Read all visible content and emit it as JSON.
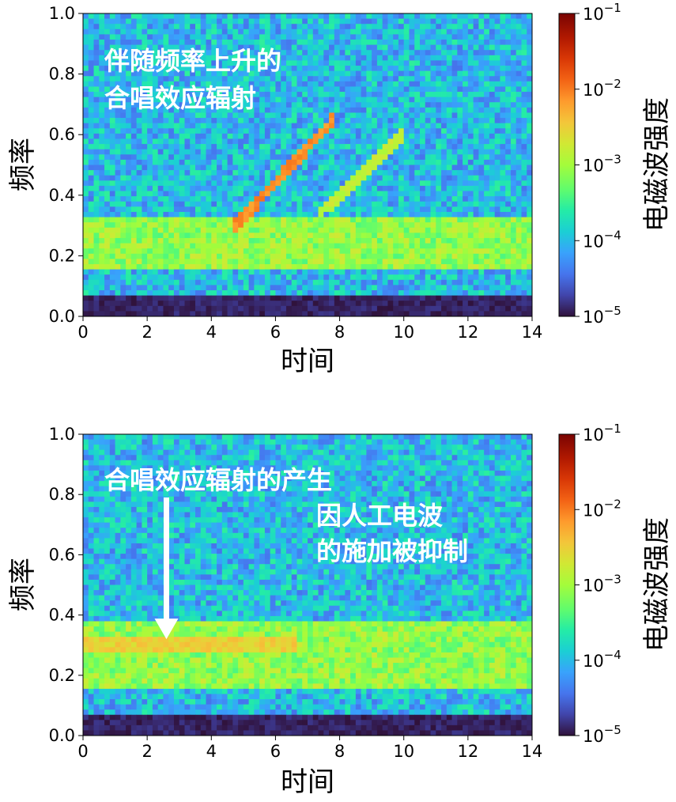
{
  "chart_data": [
    {
      "type": "heatmap",
      "xlabel": "时间",
      "ylabel": "频率",
      "xlim": [
        0,
        14
      ],
      "ylim": [
        0,
        1.0
      ],
      "xticks": [
        "0",
        "2",
        "4",
        "6",
        "8",
        "10",
        "12",
        "14"
      ],
      "yticks": [
        "0.0",
        "0.2",
        "0.4",
        "0.6",
        "0.8",
        "1.0"
      ],
      "colorbar": {
        "label": "电磁波强度",
        "scale": "log",
        "range": [
          1e-05,
          0.1
        ],
        "ticks": [
          {
            "base": "10",
            "exp": "−5"
          },
          {
            "base": "10",
            "exp": "−4"
          },
          {
            "base": "10",
            "exp": "−3"
          },
          {
            "base": "10",
            "exp": "−2"
          },
          {
            "base": "10",
            "exp": "−1"
          }
        ]
      },
      "colormap": "turbo",
      "background_band": {
        "freq_range": [
          0.07,
          0.95
        ],
        "intensity": 0.0001
      },
      "low_band": {
        "freq_range": [
          0.15,
          0.33
        ],
        "intensity": 0.001
      },
      "features": [
        {
          "kind": "rising_tone",
          "t": [
            4.6,
            7.9
          ],
          "f": [
            0.28,
            0.66
          ],
          "intensity": 0.008
        },
        {
          "kind": "rising_tone",
          "t": [
            7.4,
            10.0
          ],
          "f": [
            0.34,
            0.6
          ],
          "intensity": 0.0015
        }
      ],
      "annotations": [
        {
          "lines": [
            "伴随频率上升的",
            "合唱效应辐射"
          ]
        }
      ]
    },
    {
      "type": "heatmap",
      "xlabel": "时间",
      "ylabel": "频率",
      "xlim": [
        0,
        14
      ],
      "ylim": [
        0,
        1.0
      ],
      "xticks": [
        "0",
        "2",
        "4",
        "6",
        "8",
        "10",
        "12",
        "14"
      ],
      "yticks": [
        "0.0",
        "0.2",
        "0.4",
        "0.6",
        "0.8",
        "1.0"
      ],
      "colorbar": {
        "label": "电磁波强度",
        "scale": "log",
        "range": [
          1e-05,
          0.1
        ],
        "ticks": [
          {
            "base": "10",
            "exp": "−5"
          },
          {
            "base": "10",
            "exp": "−4"
          },
          {
            "base": "10",
            "exp": "−3"
          },
          {
            "base": "10",
            "exp": "−2"
          },
          {
            "base": "10",
            "exp": "−1"
          }
        ]
      },
      "colormap": "turbo",
      "background_band": {
        "freq_range": [
          0.07,
          0.95
        ],
        "intensity": 0.0001
      },
      "low_band": {
        "freq_range": [
          0.15,
          0.38
        ],
        "intensity": 0.001
      },
      "features": [
        {
          "kind": "constant_tone",
          "t": [
            0,
            6.6
          ],
          "f": [
            0.3,
            0.3
          ],
          "intensity": 0.003
        }
      ],
      "annotations": [
        {
          "lines": [
            "合唱效应辐射的产生"
          ]
        },
        {
          "lines": [
            "因人工电波",
            "的施加被抑制"
          ]
        }
      ],
      "arrow": {
        "t": 2.6,
        "f_from": 0.79,
        "f_to": 0.32
      }
    }
  ]
}
